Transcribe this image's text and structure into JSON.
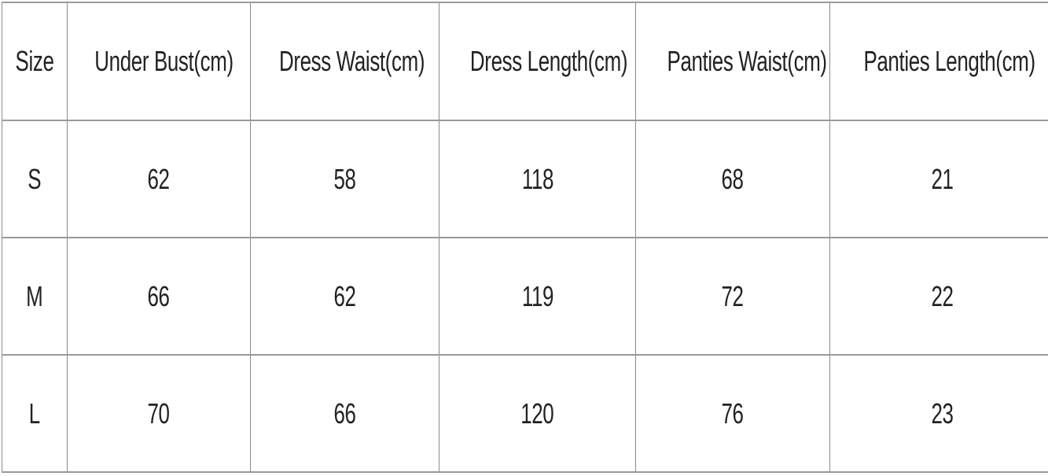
{
  "table": {
    "headers": [
      "Size",
      "Under Bust(cm)",
      "Dress Waist(cm)",
      "Dress Length(cm)",
      "Panties Waist(cm)",
      "Panties Length(cm)"
    ],
    "rows": [
      [
        "S",
        "62",
        "58",
        "118",
        "68",
        "21"
      ],
      [
        "M",
        "66",
        "62",
        "119",
        "72",
        "22"
      ],
      [
        "L",
        "70",
        "66",
        "120",
        "76",
        "23"
      ]
    ]
  }
}
